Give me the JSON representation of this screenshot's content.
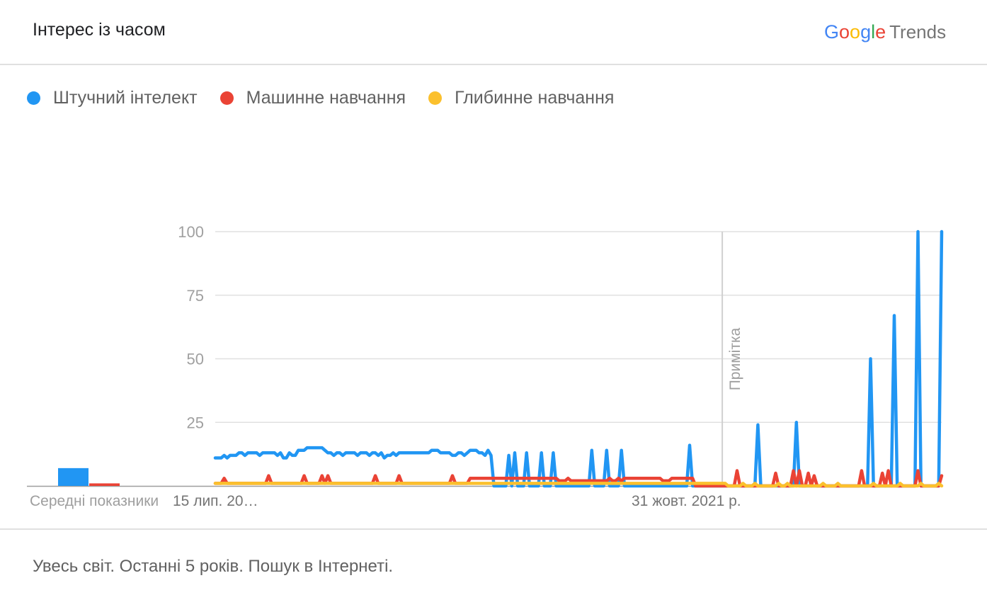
{
  "header": {
    "title": "Інтерес із часом",
    "brand_letters": [
      {
        "ch": "G",
        "color": "#4285F4"
      },
      {
        "ch": "o",
        "color": "#EA4335"
      },
      {
        "ch": "o",
        "color": "#FBBC05"
      },
      {
        "ch": "g",
        "color": "#4285F4"
      },
      {
        "ch": "l",
        "color": "#34A853"
      },
      {
        "ch": "e",
        "color": "#EA4335"
      }
    ],
    "brand_suffix": "Trends"
  },
  "footer": {
    "text": "Увесь світ. Останні 5 років. Пошук в Інтернеті."
  },
  "chart_data": {
    "type": "line",
    "title": "",
    "xlabel": "",
    "ylabel": "",
    "ylim": [
      0,
      100
    ],
    "y_ticks": [
      "100",
      "75",
      "50",
      "25"
    ],
    "y_tick_values": [
      100,
      75,
      50,
      25
    ],
    "x_tick_labels": [
      {
        "label": "15 лип. 20…",
        "index": 0
      },
      {
        "label": "31 жовт. 2021 р.",
        "index": 170
      }
    ],
    "annotation": {
      "label": "Примітка",
      "index": 171
    },
    "legend": "top-left",
    "n_points": 246,
    "averages_label": "Середні показники",
    "averages": [
      {
        "name": "Штучний інтелект",
        "value": 7,
        "color": "#2196F3"
      },
      {
        "name": "Машинне навчання",
        "value": 1,
        "color": "#EA4335"
      },
      {
        "name": "Глибинне навчання",
        "value": 0,
        "color": "#FBC02D"
      }
    ],
    "series": [
      {
        "name": "Штучний інтелект",
        "color": "#2196F3",
        "base": [
          11,
          11,
          11,
          12,
          11,
          12,
          12,
          12,
          13,
          13,
          12,
          13,
          13,
          13,
          13,
          12,
          13,
          13,
          13,
          13,
          13,
          12,
          13,
          11,
          11,
          13,
          12,
          12,
          14,
          14,
          14,
          15,
          15,
          15,
          15,
          15,
          15,
          14,
          13,
          13,
          12,
          13,
          13,
          12,
          13,
          13,
          13,
          13,
          12,
          13,
          13,
          13,
          12,
          13,
          13,
          12,
          13,
          11,
          12,
          12,
          13,
          12,
          13,
          13,
          13,
          13,
          13,
          13,
          13,
          13,
          13,
          13,
          13,
          14,
          14,
          14,
          13,
          13,
          13,
          13,
          12,
          12,
          13,
          13,
          12,
          13,
          14,
          14,
          14,
          13,
          13,
          12,
          13,
          12
        ],
        "default_after": 0,
        "spikes": [
          [
            92,
            14
          ],
          [
            99,
            12
          ],
          [
            101,
            13
          ],
          [
            105,
            13
          ],
          [
            110,
            13
          ],
          [
            114,
            13
          ],
          [
            127,
            14
          ],
          [
            132,
            14
          ],
          [
            137,
            14
          ],
          [
            160,
            16
          ],
          [
            183,
            24
          ],
          [
            196,
            25
          ],
          [
            221,
            50
          ],
          [
            229,
            67
          ],
          [
            237,
            100
          ],
          [
            245,
            100
          ]
        ]
      },
      {
        "name": "Машинне навчання",
        "color": "#EA4335",
        "base": [
          1,
          1,
          1,
          1,
          1,
          1,
          1,
          1,
          1,
          1,
          1,
          1,
          1,
          1,
          1,
          1,
          1,
          1,
          1,
          1,
          1,
          1,
          1,
          1,
          1,
          1,
          1,
          1,
          1,
          1,
          1,
          1,
          1,
          1,
          1,
          1,
          1,
          1,
          1,
          1,
          1,
          1,
          1,
          1,
          1,
          1,
          1,
          1,
          1,
          1,
          1,
          1,
          1,
          1,
          1,
          1,
          1,
          1,
          1,
          1,
          1,
          1,
          1,
          1,
          1,
          1,
          1,
          1,
          1,
          1,
          1,
          1,
          1,
          1,
          1,
          1,
          1,
          1,
          1,
          1,
          1,
          1,
          1,
          1,
          1,
          1,
          3,
          3,
          3,
          3,
          3,
          3,
          3,
          3,
          3,
          3,
          3,
          3,
          3,
          3,
          3,
          3,
          3,
          3,
          3,
          3,
          3,
          3,
          3,
          3,
          3,
          3,
          3,
          3,
          3,
          3,
          2,
          2,
          2,
          3,
          2,
          2,
          2,
          2,
          2,
          2,
          2,
          2,
          2,
          2,
          2,
          2,
          2,
          3,
          2,
          2,
          3,
          2,
          3,
          3,
          3,
          3,
          3,
          3,
          3,
          3,
          3,
          3,
          3,
          3,
          3,
          2,
          2,
          2,
          3,
          3,
          3,
          3,
          3,
          3,
          3,
          3
        ],
        "default_after": 0,
        "spikes": [
          [
            3,
            3
          ],
          [
            18,
            4
          ],
          [
            30,
            4
          ],
          [
            36,
            4
          ],
          [
            38,
            4
          ],
          [
            54,
            4
          ],
          [
            62,
            4
          ],
          [
            80,
            4
          ],
          [
            176,
            6
          ],
          [
            189,
            5
          ],
          [
            195,
            6
          ],
          [
            197,
            6
          ],
          [
            200,
            5
          ],
          [
            202,
            4
          ],
          [
            218,
            6
          ],
          [
            225,
            5
          ],
          [
            227,
            6
          ],
          [
            237,
            6
          ],
          [
            245,
            4
          ]
        ]
      },
      {
        "name": "Глибинне навчання",
        "color": "#FBC02D",
        "base": [],
        "default_all": 1,
        "default_after": 0,
        "spikes": [
          [
            172,
            1
          ],
          [
            178,
            1
          ],
          [
            182,
            1
          ],
          [
            190,
            1
          ],
          [
            193,
            1
          ],
          [
            205,
            1
          ],
          [
            210,
            1
          ],
          [
            222,
            1
          ],
          [
            231,
            1
          ],
          [
            238,
            1
          ],
          [
            244,
            1
          ]
        ]
      }
    ]
  }
}
